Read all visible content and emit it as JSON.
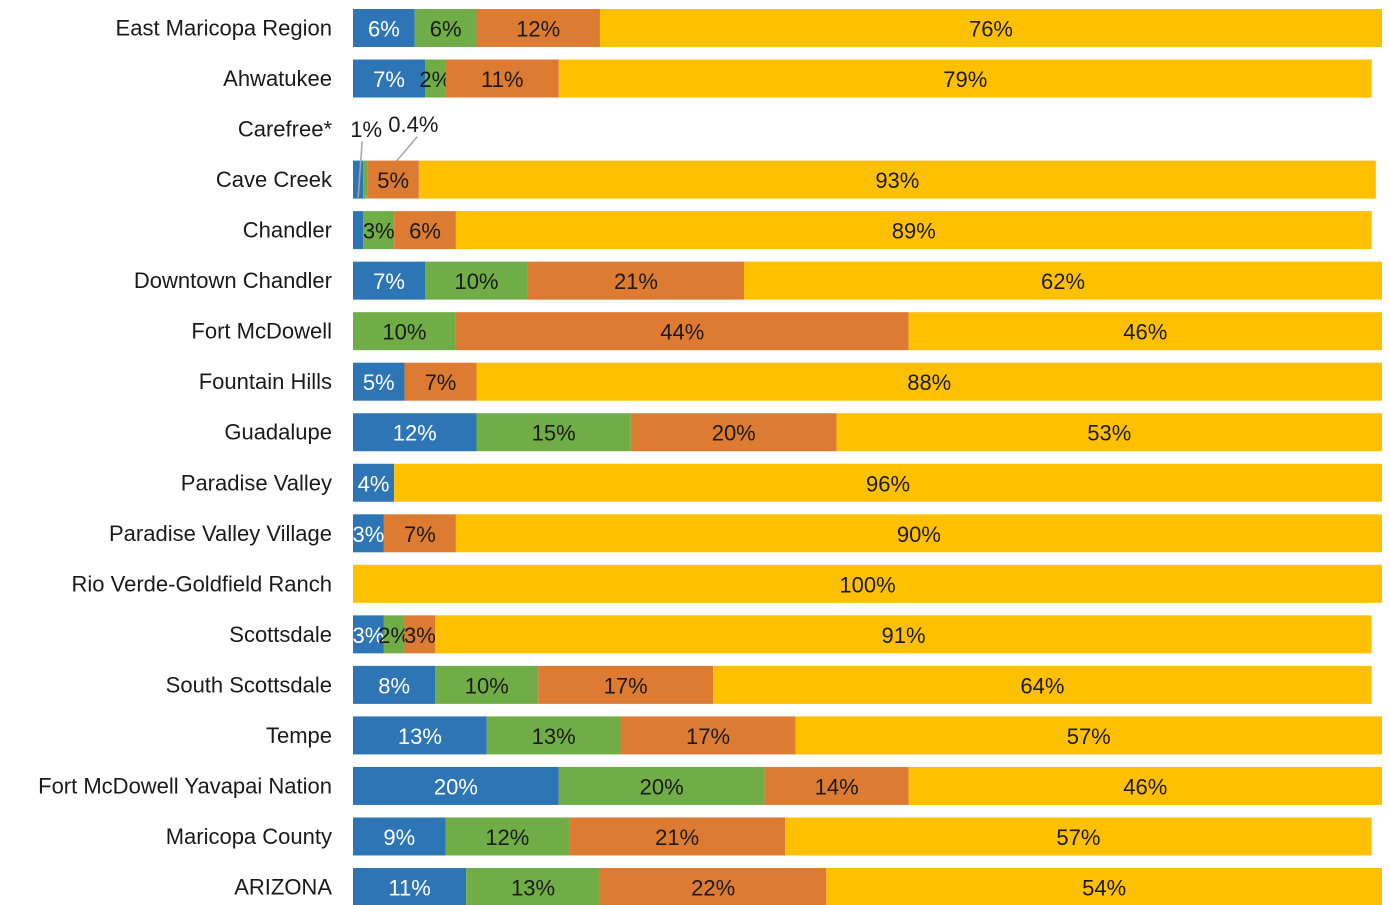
{
  "chart_data": {
    "type": "stacked-bar-horizontal",
    "categories": [
      "East Maricopa Region",
      "Ahwatukee",
      "Carefree*",
      "Cave Creek",
      "Chandler",
      "Downtown Chandler",
      "Fort McDowell",
      "Fountain Hills",
      "Guadalupe",
      "Paradise Valley",
      "Paradise Valley Village",
      "Rio Verde-Goldfield Ranch",
      "Scottsdale",
      "South Scottsdale",
      "Tempe",
      "Fort McDowell Yavapai Nation",
      "Maricopa County",
      "ARIZONA"
    ],
    "xlim": [
      0,
      100
    ],
    "series": [
      {
        "color": "#2e75b6",
        "label_color": "#ffffff",
        "values": [
          6,
          7,
          null,
          1,
          1,
          7,
          null,
          5,
          12,
          4,
          3,
          null,
          3,
          8,
          13,
          20,
          9,
          11
        ],
        "value_labels": [
          "6%",
          "7%",
          null,
          "1%",
          null,
          "7%",
          null,
          "5%",
          "12%",
          "4%",
          "3%",
          null,
          "3%",
          "8%",
          "13%",
          "20%",
          "9%",
          "11%"
        ]
      },
      {
        "color": "#70ad47",
        "label_color": "#1a1a1a",
        "values": [
          6,
          2,
          null,
          0.4,
          3,
          10,
          10,
          null,
          15,
          null,
          null,
          null,
          2,
          10,
          13,
          20,
          12,
          13
        ],
        "value_labels": [
          "6%",
          "2%",
          null,
          "0.4%",
          "3%",
          "10%",
          "10%",
          null,
          "15%",
          null,
          null,
          null,
          "2%",
          "10%",
          "13%",
          "20%",
          "12%",
          "13%"
        ]
      },
      {
        "color": "#dd7b33",
        "label_color": "#1a1a1a",
        "values": [
          12,
          11,
          null,
          5,
          6,
          21,
          44,
          7,
          20,
          null,
          7,
          null,
          3,
          17,
          17,
          14,
          21,
          22
        ],
        "value_labels": [
          "12%",
          "11%",
          null,
          "5%",
          "6%",
          "21%",
          "44%",
          "7%",
          "20%",
          null,
          "7%",
          null,
          "3%",
          "17%",
          "17%",
          "14%",
          "21%",
          "22%"
        ]
      },
      {
        "color": "#ffc000",
        "label_color": "#1a1a1a",
        "values": [
          76,
          79,
          null,
          93,
          89,
          62,
          46,
          88,
          53,
          96,
          90,
          100,
          91,
          64,
          57,
          46,
          57,
          54
        ],
        "value_labels": [
          "76%",
          "79%",
          null,
          "93%",
          "89%",
          "62%",
          "46%",
          "88%",
          "53%",
          "96%",
          "90%",
          "100%",
          "91%",
          "64%",
          "57%",
          "46%",
          "57%",
          "54%"
        ]
      }
    ]
  }
}
